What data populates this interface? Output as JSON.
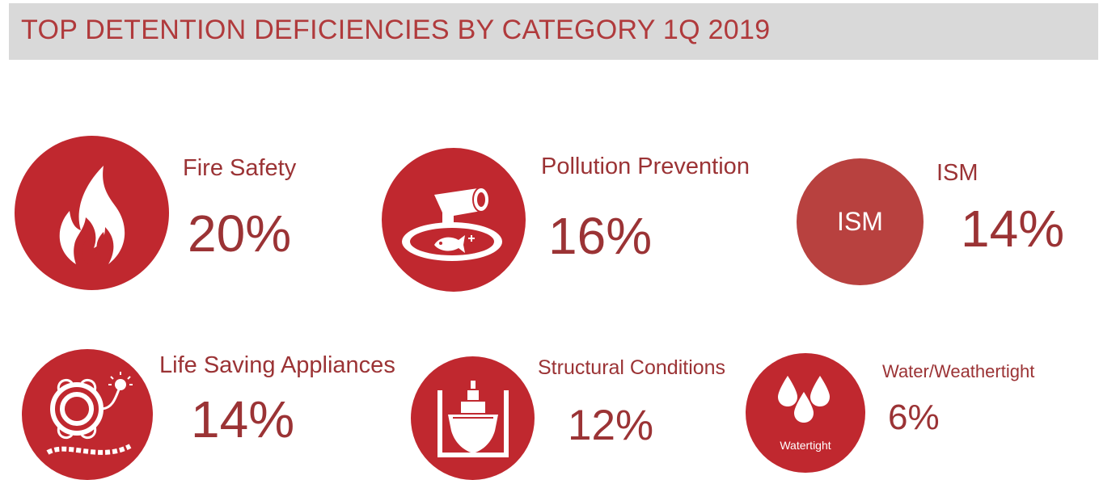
{
  "title": "TOP DETENTION DEFICIENCIES BY CATEGORY 1Q 2019",
  "colors": {
    "accent": "#c0282f",
    "text": "#9b3335",
    "title_bg": "#d9d9d9",
    "ism_circle": "#b8413f"
  },
  "categories": [
    {
      "label": "Fire Safety",
      "percent": "20%",
      "icon": "flame-icon"
    },
    {
      "label": "Pollution Prevention",
      "percent": "16%",
      "icon": "pollution-pipe-fish-icon"
    },
    {
      "label": "ISM",
      "percent": "14%",
      "icon_text": "ISM"
    },
    {
      "label": "Life Saving Appliances",
      "percent": "14%",
      "icon": "lifebuoy-icon"
    },
    {
      "label": "Structural Conditions",
      "percent": "12%",
      "icon": "ship-drydock-icon"
    },
    {
      "label": "Water/Weathertight",
      "percent": "6%",
      "icon": "water-drops-icon",
      "icon_caption": "Watertight"
    }
  ]
}
